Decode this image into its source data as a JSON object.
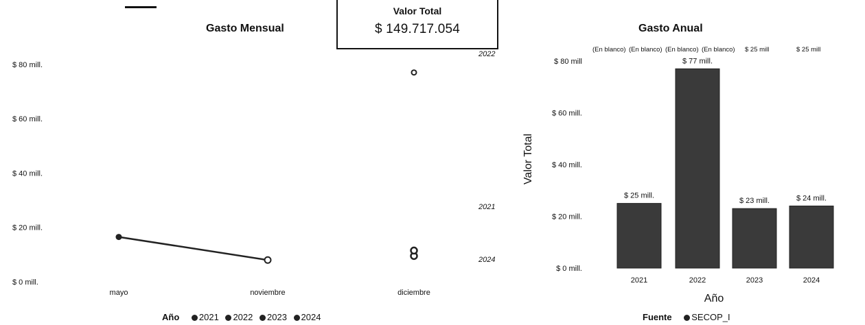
{
  "kpi": {
    "label": "Valor Total",
    "value": "$ 149.717.054"
  },
  "chart_data": [
    {
      "type": "line",
      "title": "Gasto Mensual",
      "xlabel": "",
      "ylabel": "",
      "categories": [
        "mayo",
        "noviembre",
        "diciembre"
      ],
      "yticks": [
        "$ 0 mill.",
        "$ 20 mill.",
        "$ 40 mill.",
        "$ 60 mill.",
        "$ 80 mill."
      ],
      "ylim": [
        0,
        85
      ],
      "legend_title": "Año",
      "legend": [
        "2021",
        "2022",
        "2023",
        "2024"
      ],
      "series": [
        {
          "name": "2021",
          "points": [
            {
              "x": "mayo",
              "y": 16.5
            },
            {
              "x": "diciembre",
              "y": 9.5
            },
            {
              "x": "diciembre",
              "y": 11.5
            }
          ]
        },
        {
          "name": "2022",
          "points": [
            {
              "x": "diciembre",
              "y": 77
            }
          ]
        },
        {
          "name": "2024",
          "points": [
            {
              "x": "noviembre",
              "y": 8
            }
          ]
        }
      ],
      "right_labels": [
        "2022",
        "2021",
        "2024"
      ]
    },
    {
      "type": "bar",
      "title": "Gasto Anual",
      "xlabel": "Año",
      "ylabel": "Valor Total",
      "categories": [
        "2021",
        "2022",
        "2023",
        "2024"
      ],
      "values": [
        25,
        77,
        23,
        24
      ],
      "data_labels": [
        "$ 25 mill.",
        "$ 77 mill.",
        "$ 23 mill.",
        "$ 24 mill."
      ],
      "top_labels": [
        "(En blanco)",
        "(En blanco)",
        "(En blanco)",
        "(En blanco)",
        "$ 25 mill",
        "$ 25 mill"
      ],
      "yticks": [
        "$ 0 mill.",
        "$ 20 mill.",
        "$ 40 mill.",
        "$ 60 mill.",
        "$ 80 mill"
      ],
      "ylim": [
        0,
        80
      ],
      "legend_title": "Fuente",
      "legend": [
        "SECOP_I"
      ]
    }
  ]
}
